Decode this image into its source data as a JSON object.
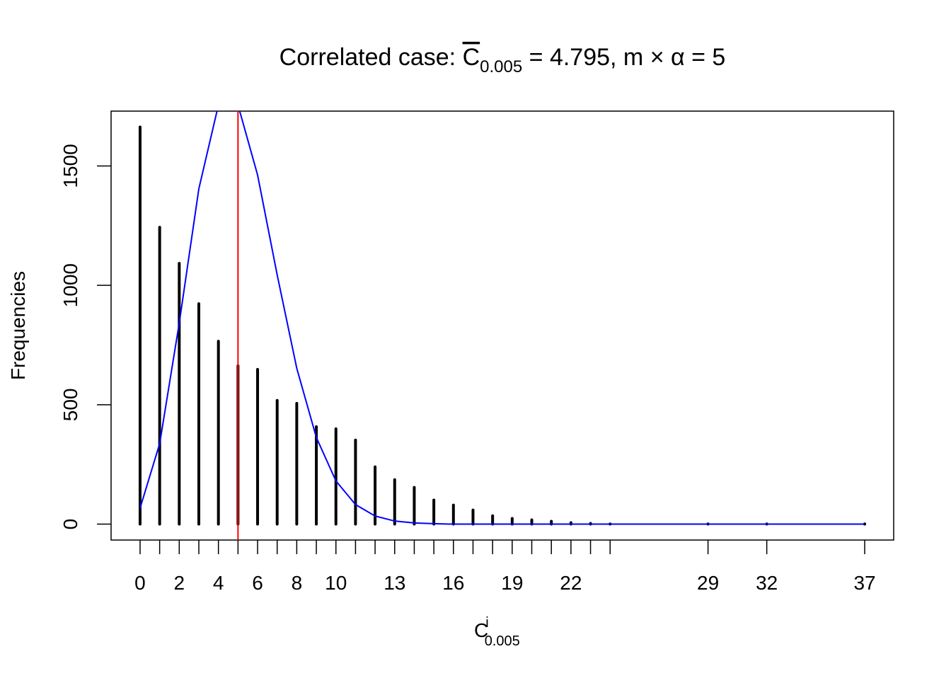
{
  "chart_data": {
    "type": "bar",
    "title": {
      "prefix": "Correlated case: ",
      "symbol": "C",
      "subscript": "0.005",
      "suffix": " = 4.795, m × α = 5"
    },
    "xlabel": {
      "symbol": "C",
      "superscript": "i",
      "subscript": "0.005"
    },
    "ylabel": "Frequencies",
    "x": [
      0,
      1,
      2,
      3,
      4,
      5,
      6,
      7,
      8,
      9,
      10,
      11,
      12,
      13,
      14,
      15,
      16,
      17,
      18,
      19,
      20,
      21,
      22,
      23,
      24,
      29,
      32,
      37
    ],
    "values": [
      1663,
      1243,
      1092,
      923,
      766,
      663,
      648,
      518,
      506,
      408,
      399,
      352,
      240,
      186,
      154,
      101,
      80,
      59,
      35,
      24,
      18,
      12,
      6,
      3,
      1,
      1,
      1,
      1
    ],
    "x_tick_labels": [
      "0",
      "2",
      "4",
      "6",
      "8",
      "10",
      "13",
      "16",
      "19",
      "22",
      "29",
      "32",
      "37"
    ],
    "y_ticks": [
      0,
      500,
      1000,
      1500
    ],
    "xlim": [
      0,
      37
    ],
    "ylim": [
      0,
      1663
    ],
    "grid": false,
    "series": [
      {
        "type": "bars",
        "color": "#000000"
      },
      {
        "type": "line",
        "color": "#0000ff",
        "values": [
          67,
          337,
          842,
          1404,
          1755,
          1755,
          1462,
          1044,
          653,
          363,
          181,
          82,
          34,
          13,
          5,
          2,
          0,
          0,
          0,
          0,
          0,
          0,
          0,
          0,
          0,
          0,
          0,
          0
        ]
      }
    ],
    "reference_line": {
      "x": 5,
      "color": "#ff0000"
    }
  }
}
